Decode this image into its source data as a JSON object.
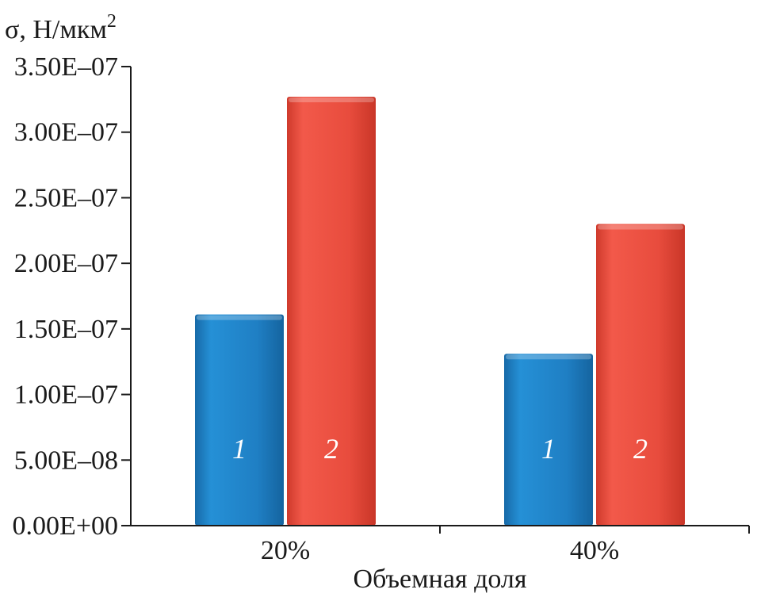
{
  "chart_data": {
    "type": "bar",
    "ylabel": "σ, Н/мкм",
    "ylabel_sup": "2",
    "xlabel": "Объемная доля",
    "categories": [
      "20%",
      "40%"
    ],
    "ylim": [
      0,
      3.5e-07
    ],
    "yticks": [
      {
        "value": 0.0,
        "label": "0.00E+00"
      },
      {
        "value": 5e-08,
        "label": "5.00E–08"
      },
      {
        "value": 1e-07,
        "label": "1.00E–07"
      },
      {
        "value": 1.5e-07,
        "label": "1.50E–07"
      },
      {
        "value": 2e-07,
        "label": "2.00E–07"
      },
      {
        "value": 2.5e-07,
        "label": "2.50E–07"
      },
      {
        "value": 3e-07,
        "label": "3.00E–07"
      },
      {
        "value": 3.5e-07,
        "label": "3.50E–07"
      }
    ],
    "series": [
      {
        "label": "1",
        "color": "#1f7fc4",
        "values": [
          1.61e-07,
          1.31e-07
        ]
      },
      {
        "label": "2",
        "color": "#e84c3d",
        "values": [
          3.27e-07,
          2.3e-07
        ]
      }
    ],
    "grid": false,
    "legend": "none"
  }
}
